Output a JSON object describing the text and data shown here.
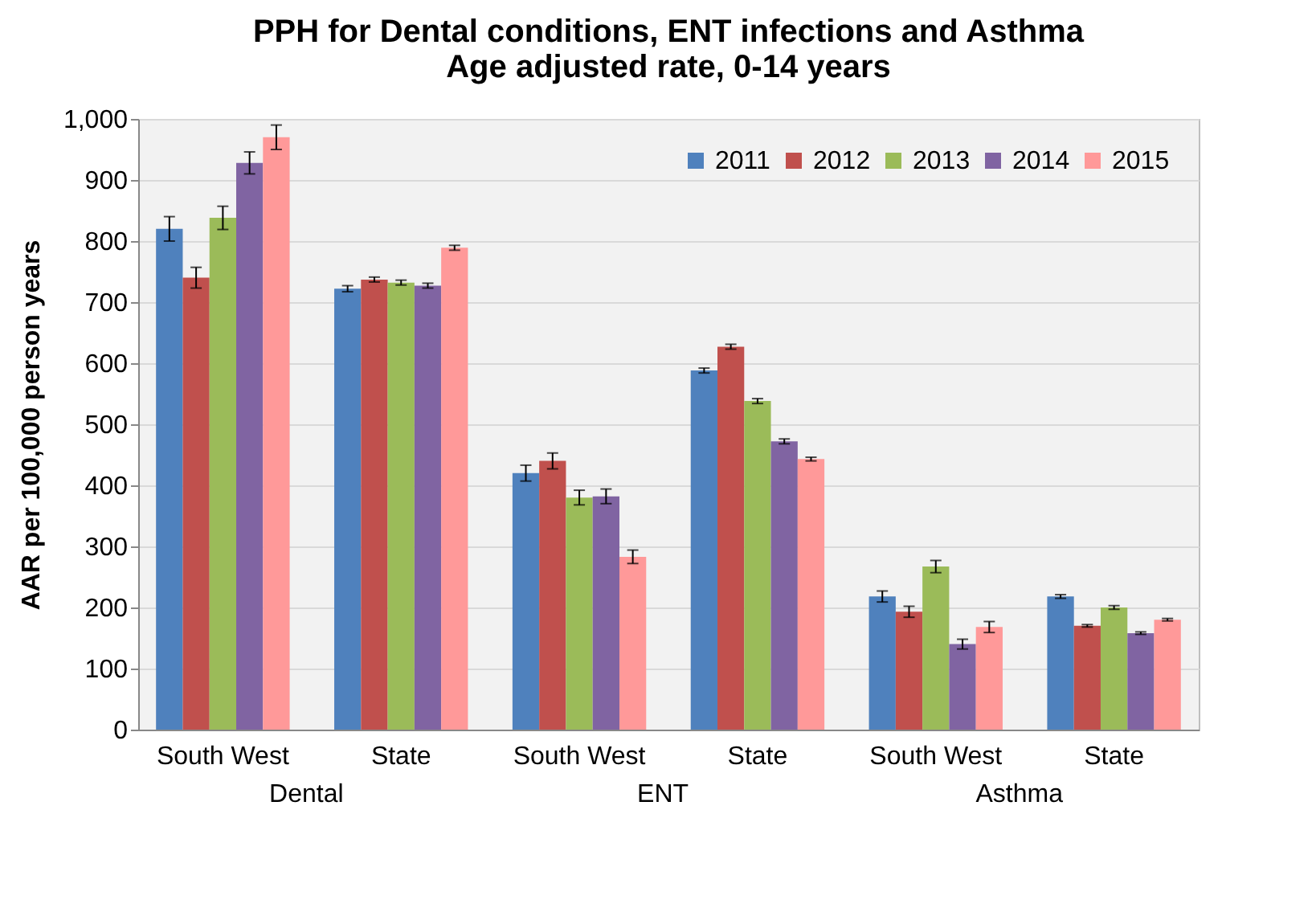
{
  "chart_data": {
    "type": "bar",
    "title": "PPH for Dental conditions, ENT infections and Asthma\nAge adjusted rate, 0-14 years",
    "ylabel": "AAR per 100,000 person years",
    "categories": [
      "South West",
      "State",
      "South West",
      "State",
      "South West",
      "State"
    ],
    "annotations": [
      "Dental",
      "ENT",
      "Asthma"
    ],
    "series": [
      {
        "name": "2011",
        "color": "#4f81bd",
        "values": [
          820,
          722,
          420,
          588,
          218,
          218
        ],
        "errors": [
          20,
          5,
          13,
          4,
          9,
          3
        ]
      },
      {
        "name": "2012",
        "color": "#c0504d",
        "values": [
          740,
          737,
          440,
          627,
          193,
          170
        ],
        "errors": [
          17,
          4,
          13,
          4,
          9,
          2
        ]
      },
      {
        "name": "2013",
        "color": "#9bbb59",
        "values": [
          838,
          732,
          380,
          538,
          267,
          200
        ],
        "errors": [
          19,
          4,
          12,
          4,
          10,
          3
        ]
      },
      {
        "name": "2014",
        "color": "#8064a2",
        "values": [
          928,
          727,
          382,
          472,
          140,
          158
        ],
        "errors": [
          18,
          4,
          12,
          4,
          8,
          2
        ]
      },
      {
        "name": "2015",
        "color": "#ff9999",
        "values": [
          970,
          789,
          283,
          443,
          168,
          180
        ],
        "errors": [
          20,
          4,
          11,
          3,
          9,
          2
        ]
      }
    ],
    "ylim": [
      0,
      1000
    ],
    "yticks": [
      0,
      100,
      200,
      300,
      400,
      500,
      600,
      700,
      800,
      900,
      {
        "value": 1000,
        "label": "1,000"
      }
    ],
    "grid": "y",
    "legend": "top right"
  }
}
